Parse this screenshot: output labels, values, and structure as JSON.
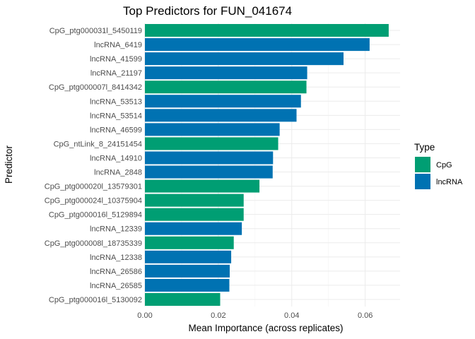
{
  "chart_data": {
    "type": "bar",
    "orientation": "horizontal",
    "title": "Top Predictors for FUN_041674",
    "xlabel": "Mean Importance (across replicates)",
    "ylabel": "Predictor",
    "xlim": [
      0,
      0.0695
    ],
    "xticks": [
      0.0,
      0.02,
      0.04,
      0.06
    ],
    "xtick_labels": [
      "0.00",
      "0.02",
      "0.04",
      "0.06"
    ],
    "grid": true,
    "legend": {
      "title": "Type",
      "placement": "right",
      "entries": [
        {
          "label": "CpG",
          "color": "#009E73"
        },
        {
          "label": "lncRNA",
          "color": "#0072B2"
        }
      ]
    },
    "bars": [
      {
        "label": "CpG_ptg000031l_5450119",
        "value": 0.0664,
        "type": "CpG"
      },
      {
        "label": "lncRNA_6419",
        "value": 0.0612,
        "type": "lncRNA"
      },
      {
        "label": "lncRNA_41599",
        "value": 0.0541,
        "type": "lncRNA"
      },
      {
        "label": "lncRNA_21197",
        "value": 0.0442,
        "type": "lncRNA"
      },
      {
        "label": "CpG_ptg000007l_8414342",
        "value": 0.044,
        "type": "CpG"
      },
      {
        "label": "lncRNA_53513",
        "value": 0.0425,
        "type": "lncRNA"
      },
      {
        "label": "lncRNA_53514",
        "value": 0.0413,
        "type": "lncRNA"
      },
      {
        "label": "lncRNA_46599",
        "value": 0.0367,
        "type": "lncRNA"
      },
      {
        "label": "CpG_ntLink_8_24151454",
        "value": 0.0363,
        "type": "CpG"
      },
      {
        "label": "lncRNA_14910",
        "value": 0.0349,
        "type": "lncRNA"
      },
      {
        "label": "lncRNA_2848",
        "value": 0.0348,
        "type": "lncRNA"
      },
      {
        "label": "CpG_ptg000020l_13579301",
        "value": 0.0312,
        "type": "CpG"
      },
      {
        "label": "CpG_ptg000024l_10375904",
        "value": 0.0269,
        "type": "CpG"
      },
      {
        "label": "CpG_ptg000016l_5129894",
        "value": 0.0269,
        "type": "CpG"
      },
      {
        "label": "lncRNA_12339",
        "value": 0.0264,
        "type": "lncRNA"
      },
      {
        "label": "CpG_ptg000008l_18735339",
        "value": 0.0242,
        "type": "CpG"
      },
      {
        "label": "lncRNA_12338",
        "value": 0.0235,
        "type": "lncRNA"
      },
      {
        "label": "lncRNA_26586",
        "value": 0.0231,
        "type": "lncRNA"
      },
      {
        "label": "lncRNA_26585",
        "value": 0.023,
        "type": "lncRNA"
      },
      {
        "label": "CpG_ptg000016l_5130092",
        "value": 0.0205,
        "type": "CpG"
      }
    ]
  }
}
